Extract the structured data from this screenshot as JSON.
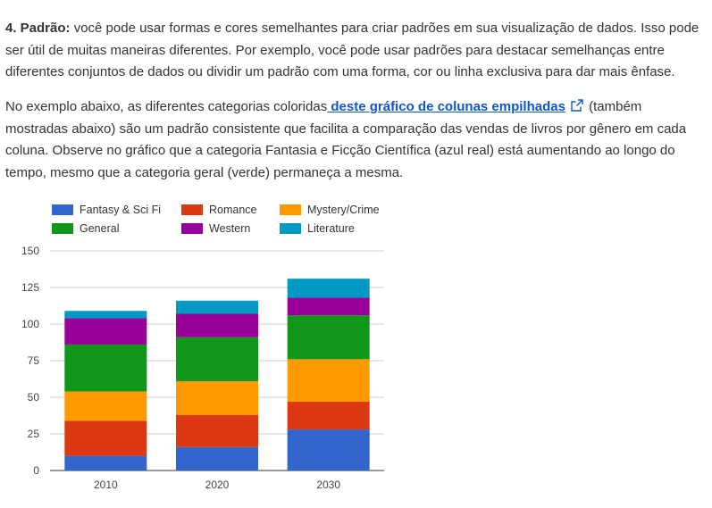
{
  "paragraph1": {
    "lead": "4. Padrão:",
    "text": " você pode usar formas e cores semelhantes para criar padrões em sua visualização de dados. Isso pode ser útil de muitas maneiras diferentes. Por exemplo, você pode usar padrões para destacar semelhanças entre diferentes conjuntos de dados ou dividir um padrão com uma forma, cor ou linha exclusiva para dar mais ênfase."
  },
  "paragraph2": {
    "before": "No exemplo abaixo, as diferentes categorias coloridas",
    "link": " deste gráfico de colunas empilhadas",
    "after": " (também mostradas abaixo) são um padrão consistente que facilita a comparação das vendas de livros por gênero em cada coluna. Observe no gráfico que a categoria Fantasia e Ficção Científica (azul real) está aumentando ao longo do tempo, mesmo que a categoria geral (verde) permaneça a mesma."
  },
  "icons": {
    "external_link": "external-link-icon"
  },
  "chart_data": {
    "type": "bar",
    "stacked": true,
    "categories": [
      "2010",
      "2020",
      "2030"
    ],
    "series": [
      {
        "name": "Fantasy & Sci Fi",
        "color": "#3366cc",
        "values": [
          10,
          16,
          28
        ]
      },
      {
        "name": "Romance",
        "color": "#dc3912",
        "values": [
          24,
          22,
          19
        ]
      },
      {
        "name": "Mystery/Crime",
        "color": "#ff9900",
        "values": [
          20,
          23,
          29
        ]
      },
      {
        "name": "General",
        "color": "#109618",
        "values": [
          32,
          30,
          30
        ]
      },
      {
        "name": "Western",
        "color": "#990099",
        "values": [
          18,
          16,
          12
        ]
      },
      {
        "name": "Literature",
        "color": "#0099c6",
        "values": [
          5,
          9,
          13
        ]
      }
    ],
    "ylim": [
      0,
      150
    ],
    "yticks": [
      0,
      25,
      50,
      75,
      100,
      125,
      150
    ],
    "grid": true,
    "legend": "top"
  }
}
